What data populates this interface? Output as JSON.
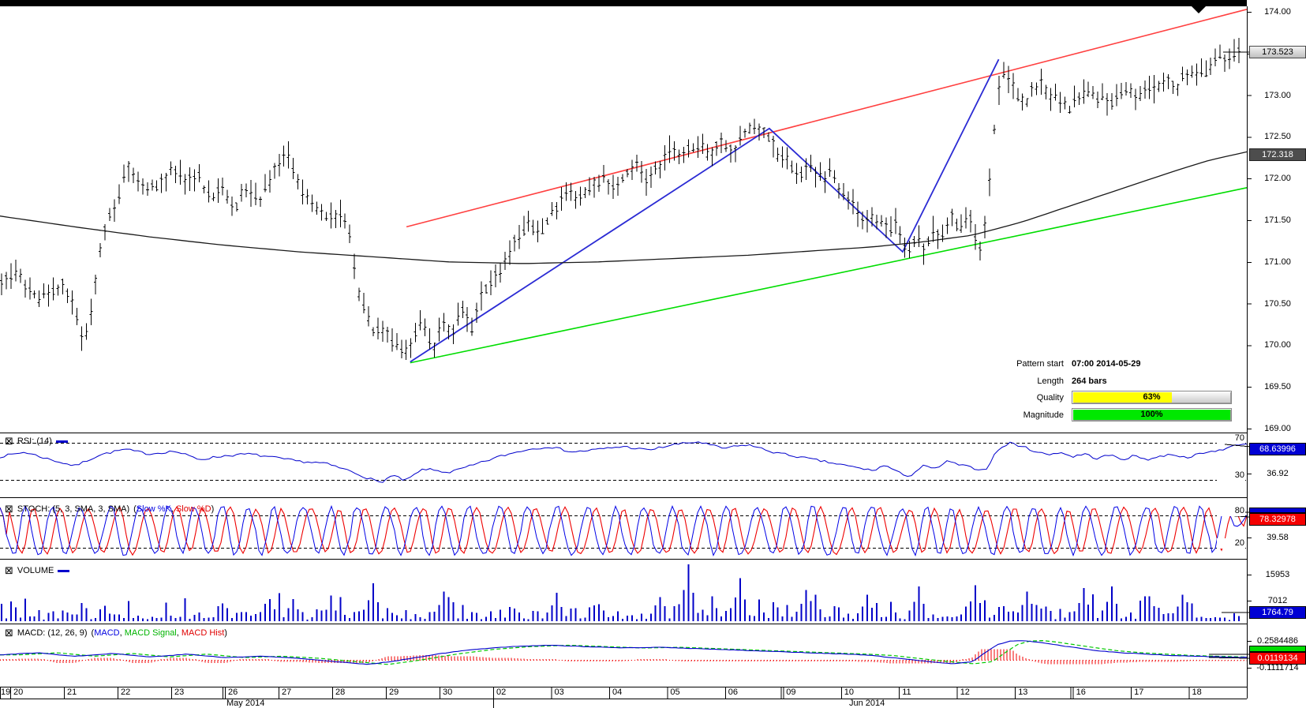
{
  "price_axis": {
    "ticks": [
      "174.00",
      "173.50",
      "173.00",
      "172.50",
      "172.00",
      "171.50",
      "171.00",
      "170.50",
      "170.00",
      "169.50",
      "169.00"
    ],
    "current_price_badge": "173.523",
    "ma_badge": "172.318"
  },
  "pattern_info": {
    "rows": [
      {
        "label": "Pattern start",
        "value": "07:00 2014-05-29"
      },
      {
        "label": "Length",
        "value": "264 bars"
      }
    ],
    "quality_label": "Quality",
    "quality_value": "63%",
    "quality_pct": 63,
    "magnitude_label": "Magnitude",
    "magnitude_value": "100%",
    "magnitude_pct": 100
  },
  "rsi_panel": {
    "label": "RSI: (14)",
    "level_upper": "70",
    "level_lower": "30",
    "badge": "68.63996",
    "axis_value": "36.92"
  },
  "stoch_panel": {
    "label": "STOCH: (5, 3, SMA, 3, SMA)",
    "legend_open": "(",
    "k_label": "Slow %K",
    "separator": ", ",
    "d_label": "Slow %D",
    "legend_close": ")",
    "level_upper": "80",
    "level_lower": "20",
    "badge": "78.32978",
    "axis_value": "39.58"
  },
  "volume_panel": {
    "label": "VOLUME",
    "axis_upper": "15953",
    "axis_lower": "7012",
    "badge": "1764.79"
  },
  "macd_panel": {
    "label": "MACD: (12, 26, 9)",
    "legend_open": "(",
    "macd_label": "MACD",
    "separator1": ", ",
    "signal_label": "MACD Signal",
    "separator2": ", ",
    "hist_label": "MACD Hist",
    "legend_close": ")",
    "axis_upper": "0.2584486",
    "badge": "0.0119134",
    "axis_lower": "-0.1111714"
  },
  "x_axis": {
    "may_days": [
      "19",
      "20",
      "21",
      "22",
      "23",
      "26",
      "27",
      "28",
      "29",
      "30"
    ],
    "jun_days": [
      "02",
      "03",
      "04",
      "05",
      "06",
      "09",
      "10",
      "11",
      "12",
      "13",
      "16",
      "17",
      "18"
    ],
    "month_may": "May 2014",
    "month_jun": "Jun 2014"
  },
  "icons": {
    "checkbox": "⊠"
  },
  "colors": {
    "bars": "#000000",
    "ma_line": "#1a1a1a",
    "trend_red": "#ff4040",
    "trend_green": "#00dd00",
    "pattern_blue": "#2b2bd4",
    "rsi_line": "#0000cc",
    "stoch_k": "#0000e6",
    "stoch_d": "#ee0000",
    "volume_bars": "#0000c8",
    "macd_line": "#0000cc",
    "macd_signal": "#00c800",
    "macd_hist": "#f00000",
    "badge_blue": "#0000d4",
    "badge_red": "#f50000",
    "badge_green": "#00dc00",
    "quality_fill": "#ffff00",
    "magnitude_fill": "#00e800"
  },
  "chart_data": {
    "type": "ohlc",
    "title": "",
    "price_axis": {
      "min": 169.0,
      "max": 174.0,
      "step": 0.5,
      "current": 173.523,
      "ma_value": 172.318
    },
    "bars_count": 264,
    "price_path": [
      [
        0,
        170.75
      ],
      [
        0.012,
        170.9
      ],
      [
        0.03,
        170.55
      ],
      [
        0.048,
        170.75
      ],
      [
        0.06,
        170.4
      ],
      [
        0.066,
        169.98
      ],
      [
        0.074,
        170.55
      ],
      [
        0.082,
        171.35
      ],
      [
        0.09,
        171.6
      ],
      [
        0.103,
        172.2
      ],
      [
        0.115,
        171.85
      ],
      [
        0.128,
        171.95
      ],
      [
        0.14,
        172.1
      ],
      [
        0.15,
        171.95
      ],
      [
        0.158,
        172.05
      ],
      [
        0.168,
        171.75
      ],
      [
        0.178,
        171.9
      ],
      [
        0.188,
        171.65
      ],
      [
        0.198,
        171.9
      ],
      [
        0.208,
        171.75
      ],
      [
        0.218,
        172.0
      ],
      [
        0.23,
        172.3
      ],
      [
        0.24,
        171.9
      ],
      [
        0.25,
        171.65
      ],
      [
        0.262,
        171.55
      ],
      [
        0.272,
        171.6
      ],
      [
        0.28,
        171.45
      ],
      [
        0.287,
        170.75
      ],
      [
        0.295,
        170.35
      ],
      [
        0.302,
        170.1
      ],
      [
        0.31,
        170.25
      ],
      [
        0.316,
        170.05
      ],
      [
        0.324,
        169.88
      ],
      [
        0.33,
        170.05
      ],
      [
        0.34,
        170.25
      ],
      [
        0.35,
        169.98
      ],
      [
        0.356,
        170.3
      ],
      [
        0.364,
        170.15
      ],
      [
        0.372,
        170.45
      ],
      [
        0.38,
        170.2
      ],
      [
        0.388,
        170.55
      ],
      [
        0.396,
        170.75
      ],
      [
        0.406,
        171.0
      ],
      [
        0.416,
        171.25
      ],
      [
        0.426,
        171.45
      ],
      [
        0.436,
        171.3
      ],
      [
        0.446,
        171.6
      ],
      [
        0.456,
        171.85
      ],
      [
        0.466,
        171.7
      ],
      [
        0.476,
        171.85
      ],
      [
        0.486,
        172.0
      ],
      [
        0.496,
        171.85
      ],
      [
        0.506,
        172.1
      ],
      [
        0.514,
        172.25
      ],
      [
        0.52,
        171.95
      ],
      [
        0.53,
        172.15
      ],
      [
        0.54,
        172.35
      ],
      [
        0.55,
        172.25
      ],
      [
        0.56,
        172.4
      ],
      [
        0.572,
        172.3
      ],
      [
        0.582,
        172.45
      ],
      [
        0.592,
        172.35
      ],
      [
        0.604,
        172.55
      ],
      [
        0.615,
        172.6
      ],
      [
        0.625,
        172.35
      ],
      [
        0.635,
        172.2
      ],
      [
        0.645,
        172.05
      ],
      [
        0.655,
        172.15
      ],
      [
        0.663,
        171.95
      ],
      [
        0.67,
        172.1
      ],
      [
        0.68,
        171.85
      ],
      [
        0.69,
        171.65
      ],
      [
        0.7,
        171.45
      ],
      [
        0.708,
        171.55
      ],
      [
        0.716,
        171.35
      ],
      [
        0.722,
        171.5
      ],
      [
        0.728,
        171.2
      ],
      [
        0.734,
        171.05
      ],
      [
        0.74,
        171.3
      ],
      [
        0.747,
        171.15
      ],
      [
        0.753,
        171.4
      ],
      [
        0.76,
        171.3
      ],
      [
        0.768,
        171.55
      ],
      [
        0.775,
        171.4
      ],
      [
        0.781,
        171.6
      ],
      [
        0.787,
        171.35
      ],
      [
        0.792,
        171.15
      ],
      [
        0.797,
        171.7
      ],
      [
        0.801,
        172.4
      ],
      [
        0.805,
        173.0
      ],
      [
        0.809,
        173.3
      ],
      [
        0.814,
        173.15
      ],
      [
        0.82,
        173.0
      ],
      [
        0.827,
        172.9
      ],
      [
        0.834,
        173.05
      ],
      [
        0.84,
        173.15
      ],
      [
        0.848,
        173.0
      ],
      [
        0.856,
        172.9
      ],
      [
        0.863,
        172.85
      ],
      [
        0.87,
        172.95
      ],
      [
        0.877,
        173.05
      ],
      [
        0.884,
        172.95
      ],
      [
        0.89,
        173.0
      ],
      [
        0.897,
        172.9
      ],
      [
        0.904,
        173.0
      ],
      [
        0.911,
        173.1
      ],
      [
        0.918,
        173.0
      ],
      [
        0.925,
        173.1
      ],
      [
        0.932,
        173.05
      ],
      [
        0.94,
        173.15
      ],
      [
        0.948,
        173.1
      ],
      [
        0.956,
        173.2
      ],
      [
        0.964,
        173.25
      ],
      [
        0.972,
        173.3
      ],
      [
        0.98,
        173.4
      ],
      [
        0.99,
        173.48
      ],
      [
        1,
        173.52
      ]
    ],
    "ma_path": [
      [
        0,
        171.55
      ],
      [
        0.06,
        171.42
      ],
      [
        0.12,
        171.3
      ],
      [
        0.18,
        171.2
      ],
      [
        0.24,
        171.12
      ],
      [
        0.3,
        171.06
      ],
      [
        0.36,
        171.0
      ],
      [
        0.42,
        170.98
      ],
      [
        0.48,
        171.0
      ],
      [
        0.54,
        171.04
      ],
      [
        0.6,
        171.08
      ],
      [
        0.66,
        171.14
      ],
      [
        0.7,
        171.18
      ],
      [
        0.74,
        171.24
      ],
      [
        0.78,
        171.32
      ],
      [
        0.82,
        171.48
      ],
      [
        0.86,
        171.68
      ],
      [
        0.9,
        171.88
      ],
      [
        0.94,
        172.08
      ],
      [
        0.97,
        172.22
      ],
      [
        1,
        172.32
      ]
    ],
    "pattern_lines": {
      "resistance_red": [
        [
          0.326,
          171.42
        ],
        [
          1,
          174.03
        ]
      ],
      "support_green": [
        [
          0.329,
          169.79
        ],
        [
          1,
          171.89
        ]
      ],
      "pattern_blue": [
        [
          0.329,
          169.8
        ],
        [
          0.617,
          172.6
        ],
        [
          0.724,
          171.12
        ],
        [
          0.801,
          173.43
        ]
      ]
    },
    "rsi": {
      "period": 14,
      "levels": [
        70,
        30
      ],
      "last": 68.63996,
      "path": [
        [
          0,
          55
        ],
        [
          0.02,
          60
        ],
        [
          0.04,
          52
        ],
        [
          0.06,
          45
        ],
        [
          0.08,
          57
        ],
        [
          0.1,
          63
        ],
        [
          0.12,
          58
        ],
        [
          0.14,
          61
        ],
        [
          0.16,
          52
        ],
        [
          0.18,
          56
        ],
        [
          0.2,
          58
        ],
        [
          0.22,
          54
        ],
        [
          0.24,
          50
        ],
        [
          0.26,
          48
        ],
        [
          0.28,
          40
        ],
        [
          0.295,
          32
        ],
        [
          0.305,
          27
        ],
        [
          0.315,
          35
        ],
        [
          0.325,
          29
        ],
        [
          0.34,
          42
        ],
        [
          0.36,
          38
        ],
        [
          0.38,
          46
        ],
        [
          0.4,
          55
        ],
        [
          0.42,
          62
        ],
        [
          0.44,
          66
        ],
        [
          0.46,
          60
        ],
        [
          0.48,
          63
        ],
        [
          0.5,
          66
        ],
        [
          0.52,
          62
        ],
        [
          0.54,
          68
        ],
        [
          0.56,
          71
        ],
        [
          0.58,
          64
        ],
        [
          0.6,
          68
        ],
        [
          0.62,
          60
        ],
        [
          0.64,
          55
        ],
        [
          0.66,
          50
        ],
        [
          0.68,
          45
        ],
        [
          0.7,
          40
        ],
        [
          0.71,
          46
        ],
        [
          0.72,
          38
        ],
        [
          0.73,
          34
        ],
        [
          0.74,
          45
        ],
        [
          0.75,
          42
        ],
        [
          0.76,
          50
        ],
        [
          0.77,
          46
        ],
        [
          0.78,
          43
        ],
        [
          0.79,
          40
        ],
        [
          0.8,
          62
        ],
        [
          0.81,
          70
        ],
        [
          0.82,
          66
        ],
        [
          0.83,
          61
        ],
        [
          0.84,
          57
        ],
        [
          0.85,
          60
        ],
        [
          0.86,
          55
        ],
        [
          0.87,
          58
        ],
        [
          0.88,
          53
        ],
        [
          0.89,
          57
        ],
        [
          0.9,
          52
        ],
        [
          0.91,
          56
        ],
        [
          0.92,
          52
        ],
        [
          0.93,
          55
        ],
        [
          0.94,
          58
        ],
        [
          0.95,
          54
        ],
        [
          0.96,
          57
        ],
        [
          0.97,
          60
        ],
        [
          0.98,
          63
        ],
        [
          0.99,
          66
        ],
        [
          1,
          68.6
        ]
      ]
    },
    "stoch": {
      "settings": "5, 3, SMA, 3, SMA",
      "levels": [
        80,
        20
      ],
      "last_d": 78.32978,
      "osc_min": 6,
      "osc_max": 97
    },
    "volume": {
      "axis_ticks": [
        15953,
        7012
      ],
      "last": 1764.79,
      "spikes": [
        [
          0.3,
          0.64
        ],
        [
          0.357,
          0.5
        ],
        [
          0.45,
          0.48
        ],
        [
          0.555,
          0.96
        ],
        [
          0.598,
          0.73
        ],
        [
          0.652,
          0.53
        ],
        [
          0.7,
          0.45
        ],
        [
          0.743,
          0.59
        ],
        [
          0.788,
          0.61
        ],
        [
          0.829,
          0.5
        ],
        [
          0.876,
          0.56
        ],
        [
          0.899,
          0.59
        ],
        [
          0.955,
          0.45
        ]
      ]
    },
    "macd": {
      "settings": "12, 26, 9",
      "axis_max": 0.2584486,
      "axis_min": -0.1111714,
      "last": 0.0119134,
      "path": [
        [
          0,
          0.05
        ],
        [
          0.03,
          0.08
        ],
        [
          0.06,
          0.03
        ],
        [
          0.09,
          0.07
        ],
        [
          0.12,
          0.02
        ],
        [
          0.15,
          0.06
        ],
        [
          0.18,
          0.01
        ],
        [
          0.21,
          0.03
        ],
        [
          0.24,
          0
        ],
        [
          0.27,
          -0.05
        ],
        [
          0.295,
          -0.09
        ],
        [
          0.32,
          -0.03
        ],
        [
          0.35,
          0.06
        ],
        [
          0.38,
          0.13
        ],
        [
          0.41,
          0.17
        ],
        [
          0.44,
          0.19
        ],
        [
          0.47,
          0.17
        ],
        [
          0.5,
          0.15
        ],
        [
          0.53,
          0.16
        ],
        [
          0.56,
          0.14
        ],
        [
          0.59,
          0.12
        ],
        [
          0.62,
          0.1
        ],
        [
          0.65,
          0.08
        ],
        [
          0.68,
          0.06
        ],
        [
          0.7,
          0.04
        ],
        [
          0.72,
          0
        ],
        [
          0.74,
          -0.04
        ],
        [
          0.765,
          -0.08
        ],
        [
          0.78,
          -0.05
        ],
        [
          0.79,
          0.08
        ],
        [
          0.8,
          0.2
        ],
        [
          0.81,
          0.25
        ],
        [
          0.82,
          0.258
        ],
        [
          0.83,
          0.24
        ],
        [
          0.845,
          0.2
        ],
        [
          0.86,
          0.16
        ],
        [
          0.88,
          0.11
        ],
        [
          0.9,
          0.08
        ],
        [
          0.92,
          0.06
        ],
        [
          0.94,
          0.04
        ],
        [
          0.96,
          0.03
        ],
        [
          0.98,
          0.02
        ],
        [
          1,
          0.012
        ]
      ]
    }
  }
}
